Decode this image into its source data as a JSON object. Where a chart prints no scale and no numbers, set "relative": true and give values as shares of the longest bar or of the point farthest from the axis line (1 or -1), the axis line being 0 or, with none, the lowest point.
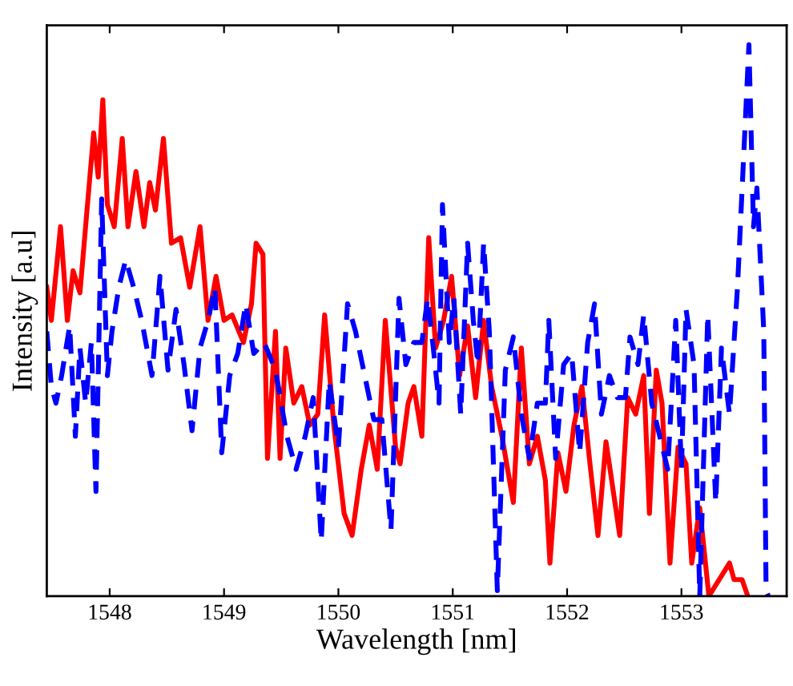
{
  "chart_data": {
    "type": "line",
    "xlabel": "Wavelength [nm]",
    "ylabel": "Intensity [a.u]",
    "relative": true,
    "xlim": [
      1547.45,
      1553.92
    ],
    "xticks": [
      1548,
      1549,
      1550,
      1551,
      1552,
      1553
    ],
    "grid": false,
    "legend": false,
    "marker": "none",
    "series": [
      {
        "color": "#ff0000",
        "line_style": "solid",
        "x": [
          1547.45,
          1547.49,
          1547.57,
          1547.63,
          1547.68,
          1547.74,
          1547.81,
          1547.86,
          1547.9,
          1547.94,
          1547.98,
          1548.04,
          1548.11,
          1548.16,
          1548.23,
          1548.3,
          1548.35,
          1548.4,
          1548.47,
          1548.54,
          1548.62,
          1548.7,
          1548.79,
          1548.86,
          1548.93,
          1549.0,
          1549.07,
          1549.17,
          1549.24,
          1549.28,
          1549.34,
          1549.38,
          1549.45,
          1549.49,
          1549.54,
          1549.61,
          1549.68,
          1549.75,
          1549.82,
          1549.88,
          1549.96,
          1550.05,
          1550.12,
          1550.2,
          1550.27,
          1550.34,
          1550.41,
          1550.5,
          1550.54,
          1550.61,
          1550.66,
          1550.73,
          1550.79,
          1550.85,
          1550.92,
          1550.99,
          1551.06,
          1551.13,
          1551.2,
          1551.27,
          1551.34,
          1551.43,
          1551.53,
          1551.6,
          1551.67,
          1551.74,
          1551.81,
          1551.85,
          1551.92,
          1551.99,
          1552.06,
          1552.13,
          1552.2,
          1552.27,
          1552.34,
          1552.39,
          1552.46,
          1552.53,
          1552.6,
          1552.67,
          1552.72,
          1552.78,
          1552.83,
          1552.9,
          1552.97,
          1553.04,
          1553.09,
          1553.16,
          1553.24,
          1553.42,
          1553.46,
          1553.53,
          1553.58
        ],
        "values": [
          0.56,
          0.5,
          0.67,
          0.5,
          0.59,
          0.55,
          0.72,
          0.84,
          0.76,
          0.9,
          0.71,
          0.67,
          0.83,
          0.67,
          0.77,
          0.67,
          0.75,
          0.7,
          0.83,
          0.64,
          0.65,
          0.56,
          0.67,
          0.5,
          0.58,
          0.5,
          0.51,
          0.46,
          0.53,
          0.64,
          0.62,
          0.25,
          0.48,
          0.25,
          0.45,
          0.35,
          0.38,
          0.31,
          0.33,
          0.51,
          0.31,
          0.15,
          0.11,
          0.23,
          0.31,
          0.23,
          0.5,
          0.27,
          0.24,
          0.35,
          0.38,
          0.29,
          0.65,
          0.45,
          0.5,
          0.58,
          0.4,
          0.49,
          0.36,
          0.5,
          0.38,
          0.29,
          0.17,
          0.45,
          0.24,
          0.29,
          0.21,
          0.06,
          0.26,
          0.19,
          0.31,
          0.38,
          0.24,
          0.11,
          0.28,
          0.21,
          0.11,
          0.36,
          0.33,
          0.4,
          0.15,
          0.41,
          0.35,
          0.06,
          0.27,
          0.24,
          0.06,
          0.16,
          0,
          0.06,
          0.03,
          0.03,
          0
        ]
      },
      {
        "color": "#0000ff",
        "line_style": "dashed",
        "x": [
          1547.45,
          1547.49,
          1547.53,
          1547.58,
          1547.65,
          1547.7,
          1547.74,
          1547.79,
          1547.84,
          1547.88,
          1547.93,
          1547.98,
          1548.02,
          1548.08,
          1548.14,
          1548.21,
          1548.28,
          1548.37,
          1548.44,
          1548.51,
          1548.58,
          1548.65,
          1548.72,
          1548.79,
          1548.86,
          1548.92,
          1548.98,
          1549.05,
          1549.12,
          1549.19,
          1549.26,
          1549.35,
          1549.45,
          1549.55,
          1549.63,
          1549.71,
          1549.78,
          1549.85,
          1549.92,
          1550.0,
          1550.08,
          1550.15,
          1550.24,
          1550.31,
          1550.38,
          1550.46,
          1550.53,
          1550.59,
          1550.66,
          1550.73,
          1550.78,
          1550.83,
          1550.88,
          1550.91,
          1550.97,
          1551.01,
          1551.07,
          1551.13,
          1551.18,
          1551.22,
          1551.27,
          1551.32,
          1551.39,
          1551.46,
          1551.53,
          1551.6,
          1551.67,
          1551.74,
          1551.81,
          1551.84,
          1551.9,
          1551.97,
          1552.04,
          1552.11,
          1552.18,
          1552.24,
          1552.3,
          1552.37,
          1552.44,
          1552.51,
          1552.55,
          1552.62,
          1552.67,
          1552.74,
          1552.81,
          1552.88,
          1552.95,
          1553.0,
          1553.04,
          1553.11,
          1553.16,
          1553.23,
          1553.3,
          1553.35,
          1553.42,
          1553.49,
          1553.59,
          1553.63,
          1553.66,
          1553.72,
          1553.74,
          1553.76
        ],
        "values": [
          0.48,
          0.38,
          0.35,
          0.4,
          0.49,
          0.29,
          0.45,
          0.35,
          0.46,
          0.19,
          0.72,
          0.4,
          0.48,
          0.56,
          0.61,
          0.56,
          0.5,
          0.4,
          0.58,
          0.41,
          0.52,
          0.42,
          0.3,
          0.45,
          0.5,
          0.56,
          0.26,
          0.4,
          0.44,
          0.53,
          0.44,
          0.46,
          0.41,
          0.29,
          0.23,
          0.29,
          0.36,
          0.1,
          0.39,
          0.27,
          0.53,
          0.48,
          0.39,
          0.32,
          0.32,
          0.12,
          0.54,
          0.42,
          0.46,
          0.46,
          0.54,
          0.45,
          0.35,
          0.71,
          0.46,
          0.54,
          0.33,
          0.64,
          0.5,
          0.42,
          0.64,
          0.48,
          0.01,
          0.41,
          0.47,
          0.33,
          0.25,
          0.35,
          0.35,
          0.5,
          0.25,
          0.42,
          0.44,
          0.26,
          0.46,
          0.53,
          0.33,
          0.4,
          0.36,
          0.36,
          0.47,
          0.42,
          0.51,
          0.35,
          0.29,
          0.23,
          0.5,
          0.23,
          0.52,
          0.42,
          0,
          0.51,
          0.17,
          0.45,
          0.33,
          0.56,
          1.0,
          0.67,
          0.74,
          0.48,
          0.01,
          0
        ]
      }
    ]
  }
}
